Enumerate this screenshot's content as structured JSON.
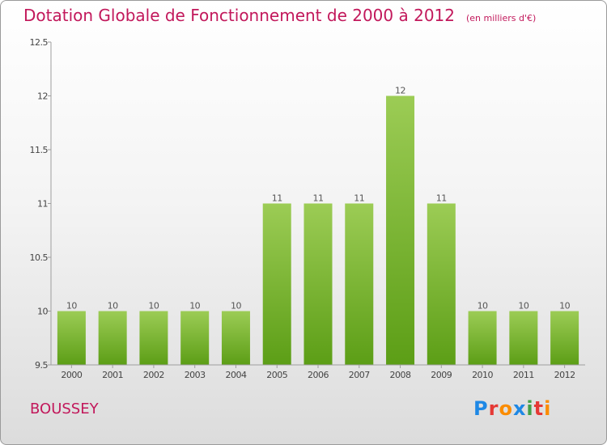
{
  "chart_data": {
    "type": "bar",
    "title": "Dotation Globale de Fonctionnement de 2000 à 2012",
    "unit": "(en milliers d'€)",
    "categories": [
      "2000",
      "2001",
      "2002",
      "2003",
      "2004",
      "2005",
      "2006",
      "2007",
      "2008",
      "2009",
      "2010",
      "2011",
      "2012"
    ],
    "values": [
      10,
      10,
      10,
      10,
      10,
      11,
      11,
      11,
      12,
      11,
      10,
      10,
      10
    ],
    "data_labels": [
      "10",
      "10",
      "10",
      "10",
      "10",
      "11",
      "11",
      "11",
      "12",
      "11",
      "10",
      "10",
      "10"
    ],
    "ylim": [
      9.5,
      12.5
    ],
    "yticks": [
      9.5,
      10,
      10.5,
      11,
      11.5,
      12,
      12.5
    ],
    "ytick_labels": [
      "9.5",
      "10",
      "10.5",
      "11",
      "11.5",
      "12",
      "12.5"
    ],
    "grid": false,
    "bar_color_top": "#9ccc55",
    "bar_color_bottom": "#5c9e16"
  },
  "commune": "BOUSSEY",
  "logo": {
    "letters": [
      "P",
      "r",
      "o",
      "x",
      "i",
      "t",
      "i"
    ],
    "colors": [
      "#1e88e5",
      "#e53935",
      "#fb8c00",
      "#1e88e5",
      "#43a047",
      "#e53935",
      "#fb8c00"
    ]
  }
}
